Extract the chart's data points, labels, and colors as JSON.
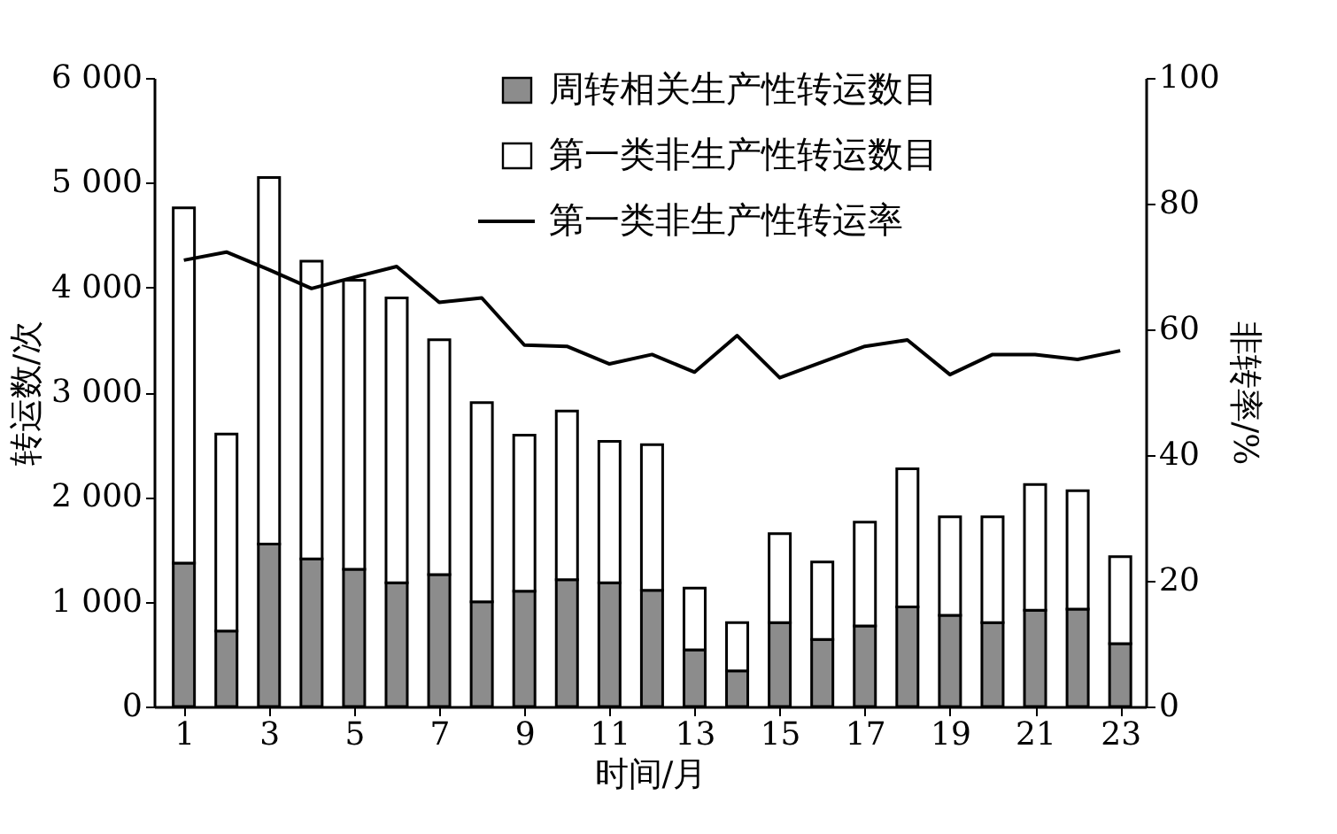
{
  "chart_data": {
    "type": "bar",
    "stacked": true,
    "xlabel": "时间/月",
    "ylabel": "转运数/次",
    "y2label": "非转率/%",
    "x": [
      1,
      2,
      3,
      4,
      5,
      6,
      7,
      8,
      9,
      10,
      11,
      12,
      13,
      14,
      15,
      16,
      17,
      18,
      19,
      20,
      21,
      22,
      23
    ],
    "xlim": [
      0.3,
      23.6
    ],
    "xticks": [
      1,
      3,
      5,
      7,
      9,
      11,
      13,
      15,
      17,
      19,
      21,
      23
    ],
    "ylim": [
      0,
      6000
    ],
    "yticks": [
      0,
      {
        "value": 1000,
        "label": "1 000"
      },
      {
        "value": 2000,
        "label": "2 000"
      },
      {
        "value": 3000,
        "label": "3 000"
      },
      {
        "value": 4000,
        "label": "4 000"
      },
      {
        "value": 5000,
        "label": "5 000"
      },
      {
        "value": 6000,
        "label": "6 000"
      }
    ],
    "y2lim": [
      0,
      100
    ],
    "y2ticks": [
      0,
      20,
      40,
      60,
      80,
      100
    ],
    "legend": "top right",
    "grid": false,
    "series": [
      {
        "name": "周转相关生产性转运数目",
        "color": "#8c8c8c",
        "values": [
          1370,
          720,
          1550,
          1410,
          1310,
          1180,
          1260,
          1000,
          1100,
          1210,
          1180,
          1110,
          540,
          340,
          800,
          640,
          770,
          950,
          870,
          800,
          920,
          930,
          600
        ]
      },
      {
        "name": "第一类非生产性转运数目",
        "color": "#ffffff",
        "values": [
          3390,
          1880,
          3500,
          2840,
          2760,
          2720,
          2240,
          1900,
          1490,
          1610,
          1350,
          1390,
          590,
          460,
          850,
          740,
          990,
          1320,
          940,
          1010,
          1200,
          1130,
          830
        ]
      },
      {
        "name": "第一类非生产性转运率",
        "type": "line",
        "axis": "y2",
        "color": "#000000",
        "values": [
          71,
          72.3,
          69.5,
          66.5,
          68.3,
          70,
          64.3,
          65,
          57.5,
          57.3,
          54.5,
          56,
          53.2,
          59,
          52.3,
          54.8,
          57.3,
          58.3,
          52.8,
          56,
          56,
          55.2,
          56.6
        ]
      }
    ]
  }
}
